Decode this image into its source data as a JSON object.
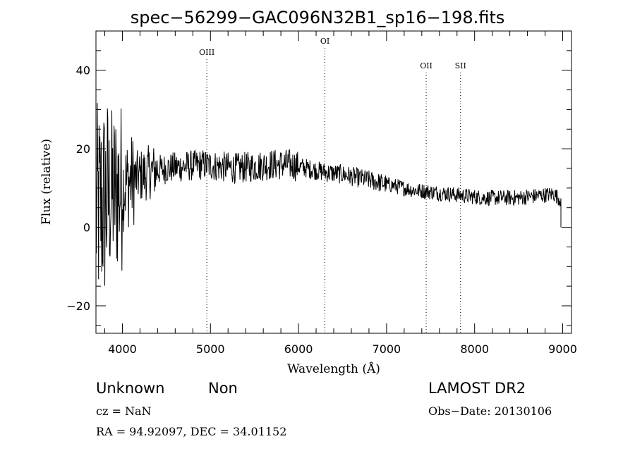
{
  "chart_data": {
    "type": "line",
    "title": "spec−56299−GAC096N32B1_sp16−198.fits",
    "xlabel": "Wavelength (Å)",
    "ylabel": "Flux (relative)",
    "xlim": [
      3700,
      9100
    ],
    "ylim": [
      -27,
      50
    ],
    "xticks": [
      4000,
      5000,
      6000,
      7000,
      8000,
      9000
    ],
    "yticks": [
      -20,
      0,
      20,
      40
    ],
    "grid": false,
    "lines": [
      {
        "name": "OIII",
        "x": 4959
      },
      {
        "name": "OI",
        "x": 6300
      },
      {
        "name": "OII",
        "x": 7450
      },
      {
        "name": "SII",
        "x": 7840
      }
    ],
    "series": [
      {
        "x": [
          3700,
          3900,
          4100,
          4300,
          4500,
          4700,
          4900,
          5100,
          5300,
          5500,
          5700,
          5900,
          6100,
          6300,
          6500,
          6700,
          6900,
          7100,
          7300,
          7500,
          7700,
          7900,
          8100,
          8300,
          8500,
          8700,
          8900,
          8980
        ],
        "y": [
          4,
          9,
          12,
          14,
          15,
          15.5,
          16,
          15.5,
          15,
          15.5,
          16,
          16,
          15,
          14,
          13.5,
          12.5,
          11.5,
          10.5,
          9.5,
          9,
          8.5,
          8,
          7.5,
          7.5,
          7.5,
          8,
          8.5,
          7
        ]
      }
    ]
  },
  "info": {
    "class": "Unknown",
    "subclass": "Non",
    "cz": "cz = NaN",
    "radec": "RA =   94.92097, DEC =   34.01152",
    "survey": "LAMOST DR2",
    "obsdate": "Obs−Date: 20130106"
  }
}
